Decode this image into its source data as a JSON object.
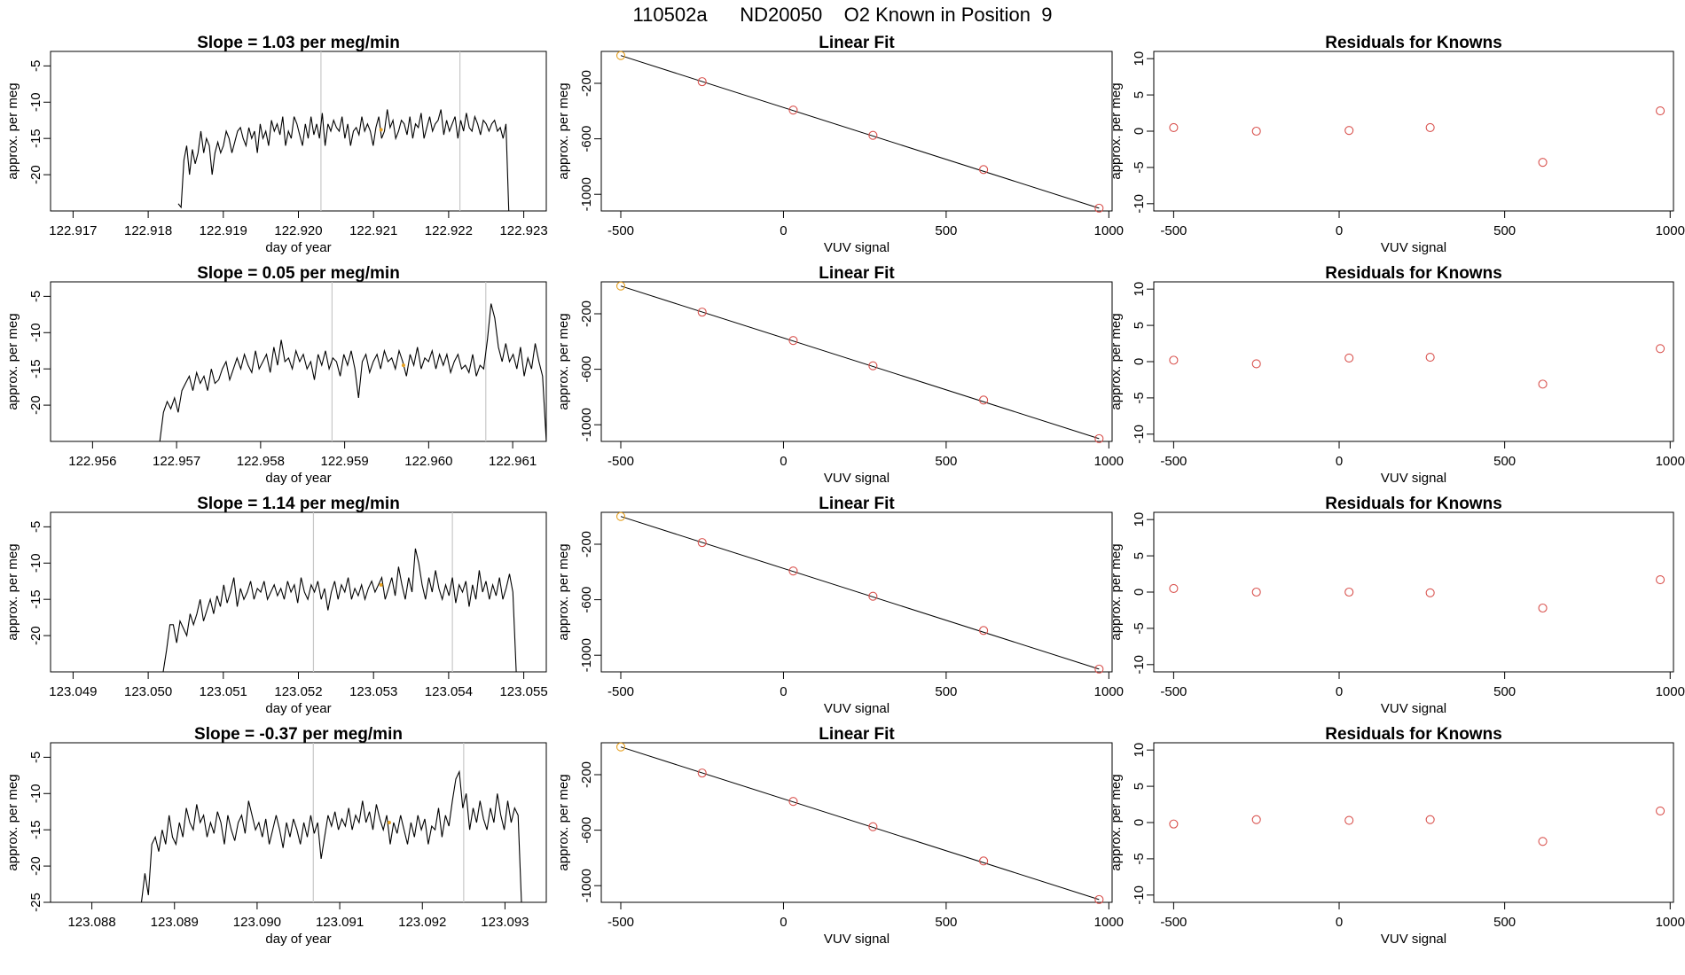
{
  "page": {
    "title": "110502a      ND20050    O2 Known in Position  9"
  },
  "colors": {
    "series_line": "#000000",
    "marker_line": "#c8c8c8",
    "known_point": "#d9534f",
    "highlight_point": "#e6a020",
    "axis": "#000000"
  },
  "chart_data": [
    {
      "type": "line",
      "title": "Slope =  1.03  per meg/min",
      "xlabel": "day of year",
      "ylabel": "approx. per meg",
      "xlim": [
        122.9167,
        122.9233
      ],
      "ylim": [
        -25,
        -3
      ],
      "xticks": [
        122.917,
        122.918,
        122.919,
        122.92,
        122.921,
        122.922,
        122.923
      ],
      "xtick_labels": [
        "122.917",
        "122.918",
        "122.919",
        "122.920",
        "122.921",
        "122.922",
        "122.923"
      ],
      "yticks": [
        -5,
        -10,
        -15,
        -20
      ],
      "ytick_labels": [
        "-5",
        "-10",
        "-15",
        "-20"
      ],
      "vlines": [
        122.9203,
        122.92215
      ],
      "highlight": [
        122.9211,
        -13.8
      ],
      "start": 122.9184,
      "end": 122.9228,
      "series": [
        {
          "name": "signal",
          "values": [
            -24,
            -24.5,
            -18,
            -16,
            -20,
            -16.5,
            -18.5,
            -17,
            -14,
            -17,
            -15,
            -16,
            -20,
            -17,
            -15.5,
            -17,
            -16,
            -14,
            -15,
            -17,
            -15.5,
            -14,
            -13.5,
            -15,
            -16,
            -13.5,
            -15,
            -14,
            -17,
            -13,
            -15,
            -14,
            -16,
            -12.5,
            -14,
            -13,
            -14.5,
            -12,
            -16,
            -14,
            -15,
            -12,
            -13,
            -14.5,
            -16,
            -13,
            -15,
            -12,
            -14.5,
            -13,
            -15,
            -11.5,
            -16,
            -13,
            -14,
            -12.5,
            -13.5,
            -14,
            -12,
            -15,
            -13,
            -16,
            -14,
            -13.5,
            -14.5,
            -12,
            -14,
            -13,
            -14,
            -16,
            -13.5,
            -12,
            -15,
            -14,
            -11,
            -13.5,
            -12.5,
            -15,
            -14,
            -12.5,
            -13,
            -14.5,
            -12,
            -15,
            -13,
            -13.5,
            -11.5,
            -15,
            -13.5,
            -12,
            -14,
            -13,
            -12.5,
            -11,
            -14.5,
            -12.5,
            -14,
            -13,
            -12,
            -15,
            -12.5,
            -14,
            -11.5,
            -13.5,
            -14,
            -12,
            -13,
            -14.5,
            -12.5,
            -13,
            -14,
            -13,
            -12.5,
            -14,
            -13.5,
            -15,
            -13,
            -25
          ]
        }
      ]
    },
    {
      "type": "scatter",
      "title": "Linear Fit",
      "xlabel": "VUV signal",
      "ylabel": "approx. per meg",
      "xlim": [
        -560,
        1010
      ],
      "ylim": [
        -1120,
        30
      ],
      "xticks": [
        -500,
        0,
        500,
        1000
      ],
      "xtick_labels": [
        "-500",
        "0",
        "500",
        "1000"
      ],
      "yticks": [
        -200,
        -600,
        -1000
      ],
      "ytick_labels": [
        "-200",
        "-600",
        "-1000"
      ],
      "fit_line": [
        [
          -500,
          0
        ],
        [
          970,
          -1100
        ]
      ],
      "points": [
        [
          -500,
          0
        ],
        [
          -250,
          -188
        ],
        [
          30,
          -393
        ],
        [
          275,
          -575
        ],
        [
          615,
          -822
        ],
        [
          970,
          -1100
        ]
      ],
      "highlight_index": 0
    },
    {
      "type": "scatter",
      "title": "Residuals for Knowns",
      "xlabel": "VUV signal",
      "ylabel": "approx. per meg",
      "xlim": [
        -560,
        1010
      ],
      "ylim": [
        -11,
        11
      ],
      "xticks": [
        -500,
        0,
        500,
        1000
      ],
      "xtick_labels": [
        "-500",
        "0",
        "500",
        "1000"
      ],
      "yticks": [
        10,
        5,
        0,
        -5,
        -10
      ],
      "ytick_labels": [
        "10",
        "5",
        "0",
        "-5",
        "-10"
      ],
      "points": [
        [
          -500,
          0.5
        ],
        [
          -250,
          0.0
        ],
        [
          30,
          0.1
        ],
        [
          275,
          0.5
        ],
        [
          615,
          -4.3
        ],
        [
          970,
          2.8
        ]
      ]
    },
    {
      "type": "line",
      "title": "Slope =  0.05  per meg/min",
      "xlabel": "day of year",
      "ylabel": "approx. per meg",
      "xlim": [
        122.9555,
        122.9614
      ],
      "ylim": [
        -25,
        -3
      ],
      "xticks": [
        122.956,
        122.957,
        122.958,
        122.959,
        122.96,
        122.961
      ],
      "xtick_labels": [
        "122.956",
        "122.957",
        "122.958",
        "122.959",
        "122.960",
        "122.961"
      ],
      "yticks": [
        -5,
        -10,
        -15,
        -20
      ],
      "ytick_labels": [
        "-5",
        "-10",
        "-15",
        "-20"
      ],
      "vlines": [
        122.95885,
        122.96068
      ],
      "highlight": [
        122.9597,
        -14.5
      ],
      "start": 122.9568,
      "end": 122.9614,
      "series": [
        {
          "name": "signal",
          "values": [
            -25,
            -21,
            -19.5,
            -20.5,
            -19,
            -21,
            -18,
            -17,
            -16,
            -18,
            -15.5,
            -17,
            -16,
            -18,
            -15,
            -17,
            -16.5,
            -15,
            -14,
            -16.5,
            -15,
            -13.5,
            -15,
            -13,
            -14.5,
            -15.5,
            -12.5,
            -15,
            -14,
            -13,
            -15.5,
            -12,
            -14.5,
            -11,
            -14,
            -13.5,
            -15,
            -12.5,
            -14,
            -13,
            -15,
            -14,
            -16.5,
            -13,
            -14.5,
            -12.5,
            -15,
            -13.5,
            -14,
            -16,
            -13,
            -14.5,
            -12.5,
            -15,
            -19,
            -14,
            -13,
            -15.5,
            -14,
            -13,
            -15,
            -12.5,
            -14,
            -13.5,
            -15,
            -12.5,
            -14,
            -16,
            -13,
            -14.5,
            -12,
            -15,
            -13.5,
            -14,
            -12.5,
            -15,
            -13,
            -14.5,
            -13,
            -15.5,
            -14,
            -13,
            -15,
            -14.5,
            -15.5,
            -13,
            -16,
            -14.5,
            -15,
            -11,
            -6,
            -8,
            -12,
            -14,
            -11.5,
            -14,
            -13,
            -15,
            -12,
            -16,
            -13.5,
            -15,
            -11.5,
            -14,
            -16,
            -25
          ]
        }
      ]
    },
    {
      "type": "scatter",
      "title": "Linear Fit",
      "xlabel": "VUV signal",
      "ylabel": "approx. per meg",
      "xlim": [
        -560,
        1010
      ],
      "ylim": [
        -1120,
        30
      ],
      "xticks": [
        -500,
        0,
        500,
        1000
      ],
      "xtick_labels": [
        "-500",
        "0",
        "500",
        "1000"
      ],
      "yticks": [
        -200,
        -600,
        -1000
      ],
      "ytick_labels": [
        "-200",
        "-600",
        "-1000"
      ],
      "fit_line": [
        [
          -500,
          0
        ],
        [
          970,
          -1100
        ]
      ],
      "points": [
        [
          -500,
          0
        ],
        [
          -250,
          -188
        ],
        [
          30,
          -393
        ],
        [
          275,
          -575
        ],
        [
          615,
          -822
        ],
        [
          970,
          -1100
        ]
      ],
      "highlight_index": 0
    },
    {
      "type": "scatter",
      "title": "Residuals for Knowns",
      "xlabel": "VUV signal",
      "ylabel": "approx. per meg",
      "xlim": [
        -560,
        1010
      ],
      "ylim": [
        -11,
        11
      ],
      "xticks": [
        -500,
        0,
        500,
        1000
      ],
      "xtick_labels": [
        "-500",
        "0",
        "500",
        "1000"
      ],
      "yticks": [
        10,
        5,
        0,
        -5,
        -10
      ],
      "ytick_labels": [
        "10",
        "5",
        "0",
        "-5",
        "-10"
      ],
      "points": [
        [
          -500,
          0.2
        ],
        [
          -250,
          -0.3
        ],
        [
          30,
          0.5
        ],
        [
          275,
          0.6
        ],
        [
          615,
          -3.1
        ],
        [
          970,
          1.8
        ]
      ]
    },
    {
      "type": "line",
      "title": "Slope =  1.14  per meg/min",
      "xlabel": "day of year",
      "ylabel": "approx. per meg",
      "xlim": [
        123.0487,
        123.0553
      ],
      "ylim": [
        -25,
        -3
      ],
      "xticks": [
        123.049,
        123.05,
        123.051,
        123.052,
        123.053,
        123.054,
        123.055
      ],
      "xtick_labels": [
        "123.049",
        "123.050",
        "123.051",
        "123.052",
        "123.053",
        "123.054",
        "123.055"
      ],
      "yticks": [
        -5,
        -10,
        -15,
        -20
      ],
      "ytick_labels": [
        "-5",
        "-10",
        "-15",
        "-20"
      ],
      "vlines": [
        123.0522,
        123.05405
      ],
      "highlight": [
        123.0531,
        -13
      ],
      "start": 123.0502,
      "end": 123.0549,
      "series": [
        {
          "name": "signal",
          "values": [
            -25,
            -22,
            -18.5,
            -18.5,
            -21,
            -18,
            -19,
            -20,
            -17,
            -18.5,
            -17,
            -15,
            -18,
            -16.5,
            -15,
            -17,
            -14.5,
            -16,
            -13,
            -15.5,
            -14,
            -12,
            -16,
            -13.5,
            -15,
            -14,
            -12.5,
            -15,
            -13.5,
            -14,
            -12.5,
            -15,
            -14,
            -13,
            -14.5,
            -13.5,
            -15,
            -12.5,
            -14,
            -13,
            -15.5,
            -12,
            -14,
            -15,
            -13,
            -14,
            -12.5,
            -15,
            -13.5,
            -16.5,
            -14,
            -12.5,
            -15,
            -13,
            -14,
            -12,
            -15,
            -13.5,
            -14.5,
            -13,
            -15,
            -13.5,
            -12.5,
            -14,
            -13,
            -12,
            -15,
            -13.5,
            -12,
            -14.5,
            -10.5,
            -13,
            -15,
            -12,
            -14,
            -8,
            -10,
            -13,
            -15,
            -12,
            -14,
            -11,
            -13.5,
            -15,
            -13,
            -14.5,
            -12,
            -15.5,
            -13,
            -14,
            -12.5,
            -16,
            -13,
            -15,
            -11,
            -14,
            -12.5,
            -15,
            -13,
            -14.5,
            -12,
            -15,
            -13.5,
            -11.5,
            -14,
            -25
          ]
        }
      ]
    },
    {
      "type": "scatter",
      "title": "Linear Fit",
      "xlabel": "VUV signal",
      "ylabel": "approx. per meg",
      "xlim": [
        -560,
        1010
      ],
      "ylim": [
        -1120,
        30
      ],
      "xticks": [
        -500,
        0,
        500,
        1000
      ],
      "xtick_labels": [
        "-500",
        "0",
        "500",
        "1000"
      ],
      "yticks": [
        -200,
        -600,
        -1000
      ],
      "ytick_labels": [
        "-200",
        "-600",
        "-1000"
      ],
      "fit_line": [
        [
          -500,
          0
        ],
        [
          970,
          -1100
        ]
      ],
      "points": [
        [
          -500,
          0
        ],
        [
          -250,
          -188
        ],
        [
          30,
          -393
        ],
        [
          275,
          -575
        ],
        [
          615,
          -822
        ],
        [
          970,
          -1100
        ]
      ],
      "highlight_index": 0
    },
    {
      "type": "scatter",
      "title": "Residuals for Knowns",
      "xlabel": "VUV signal",
      "ylabel": "approx. per meg",
      "xlim": [
        -560,
        1010
      ],
      "ylim": [
        -11,
        11
      ],
      "xticks": [
        -500,
        0,
        500,
        1000
      ],
      "xtick_labels": [
        "-500",
        "0",
        "500",
        "1000"
      ],
      "yticks": [
        10,
        5,
        0,
        -5,
        -10
      ],
      "ytick_labels": [
        "10",
        "5",
        "0",
        "-5",
        "-10"
      ],
      "points": [
        [
          -500,
          0.5
        ],
        [
          -250,
          0.0
        ],
        [
          30,
          0.0
        ],
        [
          275,
          -0.1
        ],
        [
          615,
          -2.2
        ],
        [
          970,
          1.7
        ]
      ]
    },
    {
      "type": "line",
      "title": "Slope =  -0.37  per meg/min",
      "xlabel": "day of year",
      "ylabel": "approx. per meg",
      "xlim": [
        123.0875,
        123.0935
      ],
      "ylim": [
        -25,
        -3
      ],
      "xticks": [
        123.088,
        123.089,
        123.09,
        123.091,
        123.092,
        123.093
      ],
      "xtick_labels": [
        "123.088",
        "123.089",
        "123.090",
        "123.091",
        "123.092",
        "123.093"
      ],
      "yticks": [
        -5,
        -10,
        -15,
        -20,
        -25
      ],
      "ytick_labels": [
        "-5",
        "-10",
        "-15",
        "-20",
        "-25"
      ],
      "vlines": [
        123.09068,
        123.0925
      ],
      "highlight": [
        123.0916,
        -14
      ],
      "start": 123.0886,
      "end": 123.0932,
      "series": [
        {
          "name": "signal",
          "values": [
            -25,
            -21,
            -24,
            -17,
            -16,
            -18,
            -15,
            -17,
            -13,
            -16,
            -17,
            -14,
            -16,
            -12,
            -14,
            -15,
            -11.5,
            -14,
            -13,
            -16,
            -14,
            -15.5,
            -12.5,
            -14,
            -17,
            -13,
            -15,
            -16.5,
            -14,
            -13,
            -15.5,
            -11,
            -13,
            -15,
            -14,
            -16,
            -13.5,
            -17,
            -15,
            -13,
            -15,
            -17.5,
            -14,
            -16,
            -13.5,
            -15,
            -17,
            -14,
            -16,
            -13,
            -15.5,
            -14,
            -19,
            -16,
            -13,
            -14.5,
            -12.5,
            -15,
            -13.5,
            -14.5,
            -12,
            -15,
            -13,
            -14,
            -11,
            -14,
            -12.5,
            -15,
            -11.5,
            -13.5,
            -15,
            -13,
            -17,
            -14,
            -15.5,
            -13,
            -15,
            -17,
            -14,
            -16,
            -13,
            -15,
            -13.5,
            -17,
            -14.5,
            -15,
            -12,
            -16,
            -13,
            -14.5,
            -11,
            -8,
            -7,
            -12,
            -10,
            -15,
            -12,
            -14,
            -11,
            -13.5,
            -15,
            -12,
            -14,
            -10,
            -13,
            -15,
            -11,
            -14,
            -12,
            -13,
            -25
          ]
        }
      ]
    },
    {
      "type": "scatter",
      "title": "Linear Fit",
      "xlabel": "VUV signal",
      "ylabel": "approx. per meg",
      "xlim": [
        -560,
        1010
      ],
      "ylim": [
        -1120,
        30
      ],
      "xticks": [
        -500,
        0,
        500,
        1000
      ],
      "xtick_labels": [
        "-500",
        "0",
        "500",
        "1000"
      ],
      "yticks": [
        -200,
        -600,
        -1000
      ],
      "ytick_labels": [
        "-200",
        "-600",
        "-1000"
      ],
      "fit_line": [
        [
          -500,
          0
        ],
        [
          970,
          -1100
        ]
      ],
      "points": [
        [
          -500,
          0
        ],
        [
          -250,
          -188
        ],
        [
          30,
          -393
        ],
        [
          275,
          -575
        ],
        [
          615,
          -822
        ],
        [
          970,
          -1100
        ]
      ],
      "highlight_index": 0
    },
    {
      "type": "scatter",
      "title": "Residuals for Knowns",
      "xlabel": "VUV signal",
      "ylabel": "approx. per meg",
      "xlim": [
        -560,
        1010
      ],
      "ylim": [
        -11,
        11
      ],
      "xticks": [
        -500,
        0,
        500,
        1000
      ],
      "xtick_labels": [
        "-500",
        "0",
        "500",
        "1000"
      ],
      "yticks": [
        10,
        5,
        0,
        -5,
        -10
      ],
      "ytick_labels": [
        "10",
        "5",
        "0",
        "-5",
        "-10"
      ],
      "points": [
        [
          -500,
          -0.2
        ],
        [
          -250,
          0.4
        ],
        [
          30,
          0.3
        ],
        [
          275,
          0.4
        ],
        [
          615,
          -2.6
        ],
        [
          970,
          1.6
        ]
      ]
    }
  ]
}
